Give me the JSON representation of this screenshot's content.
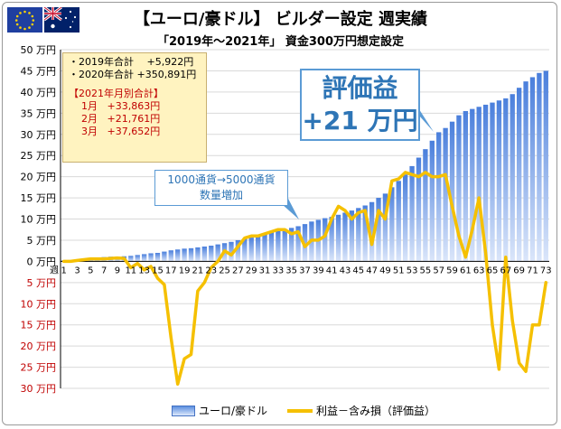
{
  "title": "【ユーロ/豪ドル】 ビルダー設定 週実績",
  "subtitle": "「2019年～2021年」 資金300万円想定設定",
  "info_box": {
    "lines": [
      {
        "label": "・2019年合計",
        "value": "+5,922円"
      },
      {
        "label": "・2020年合計",
        "value": "+350,891円"
      }
    ],
    "monthly_title": "【2021年月別合計】",
    "monthly": [
      {
        "month": "1月",
        "value": "+33,863円"
      },
      {
        "month": "2月",
        "value": "+21,761円"
      },
      {
        "month": "3月",
        "value": "+37,652円"
      }
    ]
  },
  "callout_main": {
    "line1": "評価益",
    "line2": "+21 万円"
  },
  "callout_small": {
    "line1": "1000通貨→5000通貨",
    "line2": "数量増加"
  },
  "flag_icon": "eu-australia-flags-icon",
  "colors": {
    "bar_top": "#4a7fdc",
    "bar_bottom": "#dbe6fa",
    "line": "#f5c000",
    "callout_border": "#5b9bd5",
    "callout_text": "#2e75b6",
    "negative_ticks": "#c00000"
  },
  "chart_data": {
    "type": "bar",
    "xlabel": "週",
    "ylim": [
      -30,
      50
    ],
    "yticks": [
      {
        "value": 50,
        "label": "50 万円"
      },
      {
        "value": 45,
        "label": "45 万円"
      },
      {
        "value": 40,
        "label": "40 万円"
      },
      {
        "value": 35,
        "label": "35 万円"
      },
      {
        "value": 30,
        "label": "30 万円"
      },
      {
        "value": 25,
        "label": "25 万円"
      },
      {
        "value": 20,
        "label": "20 万円"
      },
      {
        "value": 15,
        "label": "15 万円"
      },
      {
        "value": 10,
        "label": "10 万円"
      },
      {
        "value": 5,
        "label": "5 万円"
      },
      {
        "value": 0,
        "label": "0 万円"
      },
      {
        "value": -5,
        "label": "5 万円"
      },
      {
        "value": -10,
        "label": "10 万円"
      },
      {
        "value": -15,
        "label": "15 万円"
      },
      {
        "value": -20,
        "label": "20 万円"
      },
      {
        "value": -25,
        "label": "25 万円"
      },
      {
        "value": -30,
        "label": "30 万円"
      }
    ],
    "grid": true,
    "legend_position": "bottom",
    "x": [
      1,
      2,
      3,
      4,
      5,
      6,
      7,
      8,
      9,
      10,
      11,
      12,
      13,
      14,
      15,
      16,
      17,
      18,
      19,
      20,
      21,
      22,
      23,
      24,
      25,
      26,
      27,
      28,
      29,
      30,
      31,
      32,
      33,
      34,
      35,
      36,
      37,
      38,
      39,
      40,
      41,
      42,
      43,
      44,
      45,
      46,
      47,
      48,
      49,
      50,
      51,
      52,
      53,
      54,
      55,
      56,
      57,
      58,
      59,
      60,
      61,
      62,
      63,
      64,
      65,
      66,
      67,
      68,
      69,
      70,
      71,
      72,
      73
    ],
    "xtick_labels": [
      "1",
      "3",
      "5",
      "7",
      "9",
      "11",
      "13",
      "15",
      "17",
      "19",
      "21",
      "23",
      "25",
      "27",
      "29",
      "31",
      "33",
      "35",
      "37",
      "39",
      "41",
      "43",
      "45",
      "47",
      "49",
      "51",
      "53",
      "55",
      "57",
      "59",
      "61",
      "63",
      "65",
      "67",
      "69",
      "71",
      "73"
    ],
    "series": [
      {
        "name": "ユーロ/豪ドル",
        "type": "bar",
        "values": [
          0.2,
          0.3,
          0.5,
          0.6,
          0.8,
          0.9,
          1.0,
          1.1,
          1.1,
          1.2,
          1.3,
          1.5,
          1.7,
          1.9,
          2.0,
          2.3,
          2.6,
          2.8,
          3.0,
          3.1,
          3.3,
          3.5,
          3.7,
          4.0,
          4.3,
          4.6,
          5.0,
          5.3,
          5.6,
          6.0,
          6.4,
          6.8,
          7.2,
          7.6,
          7.9,
          8.3,
          8.8,
          9.4,
          9.8,
          10.2,
          10.5,
          11.0,
          11.5,
          12.0,
          12.6,
          13.2,
          14.0,
          15.0,
          16.0,
          17.5,
          19.0,
          20.5,
          22.5,
          24.5,
          26.5,
          28.5,
          30.5,
          31.5,
          33.0,
          34.5,
          35.5,
          36.0,
          36.5,
          37.0,
          37.5,
          38.0,
          38.5,
          39.5,
          41.0,
          42.5,
          43.5,
          44.5,
          45.0
        ]
      },
      {
        "name": "利益－含み損（評価益）",
        "type": "line",
        "values": [
          0,
          0,
          0.2,
          0.4,
          0.6,
          0.6,
          0.6,
          0.7,
          0.8,
          0.7,
          -1.5,
          -0.5,
          -2.0,
          -1.2,
          -4.0,
          -5.5,
          -18,
          -29,
          -23,
          -22,
          -7,
          -5,
          -1.5,
          0,
          2.5,
          1.5,
          3.5,
          5.5,
          6.0,
          6.0,
          6.5,
          7.0,
          7.5,
          7.5,
          6.5,
          7.0,
          3.5,
          5.0,
          5.0,
          6.0,
          10.0,
          13.0,
          12.0,
          10.0,
          11.5,
          12.0,
          4.0,
          12.0,
          10.0,
          19.0,
          19.5,
          21.0,
          20.5,
          20.0,
          21.0,
          20.0,
          20.0,
          20.5,
          13.0,
          6.0,
          1.0,
          7.5,
          15.0,
          2.0,
          -15,
          -25.5,
          1.0,
          -14,
          -24,
          -26,
          -15,
          -15,
          -5.0
        ]
      }
    ]
  },
  "legend": {
    "bar_label": "ユーロ/豪ドル",
    "line_label": "利益－含み損（評価益）"
  }
}
